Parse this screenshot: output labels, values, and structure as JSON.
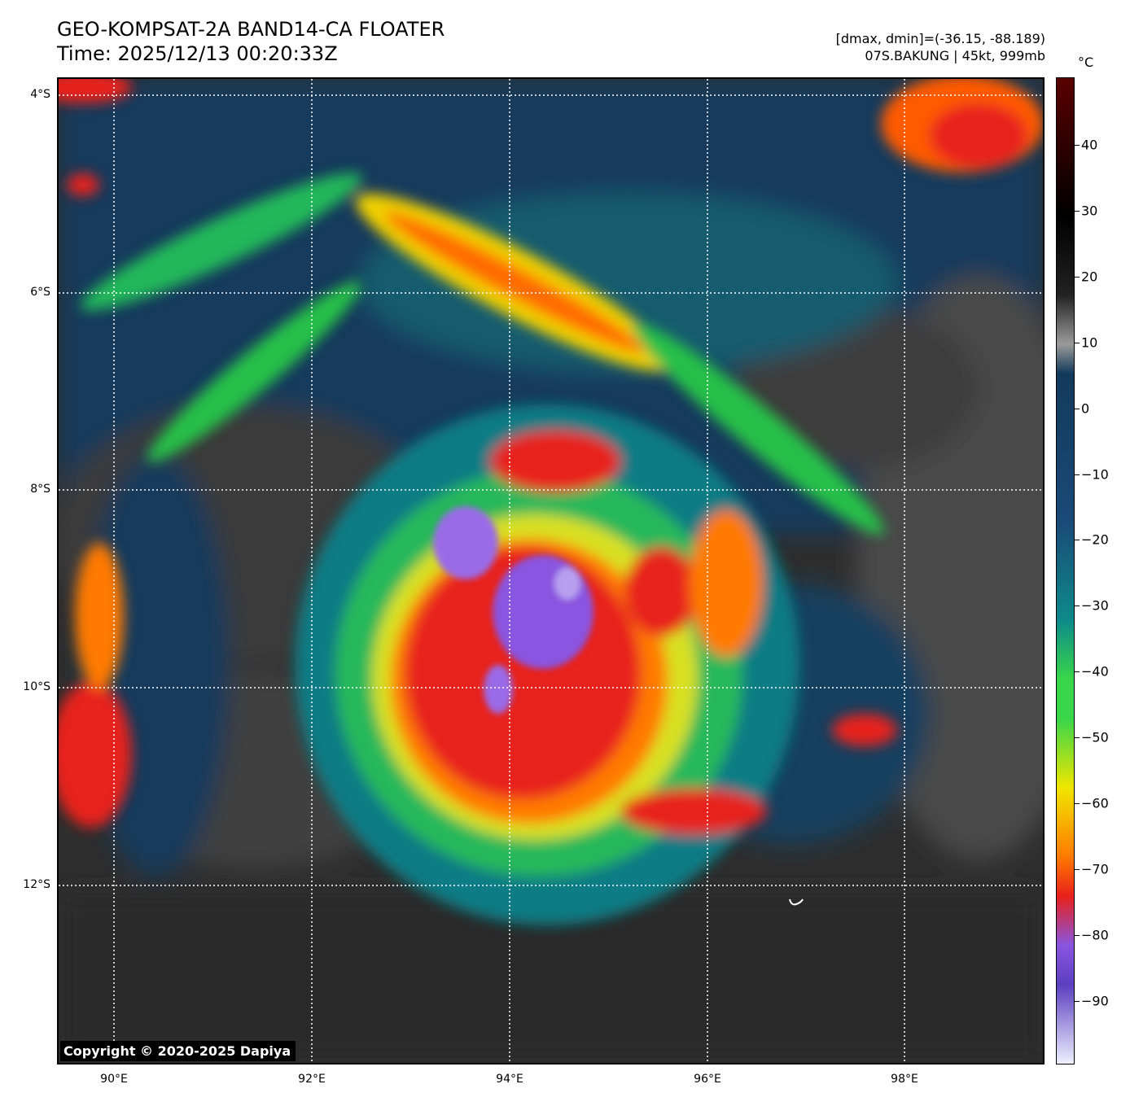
{
  "header": {
    "title": "GEO-KOMPSAT-2A BAND14-CA FLOATER",
    "time": "Time: 2025/12/13 00:20:33Z",
    "range": "[dmax, dmin]=(-36.15, -88.189)",
    "storm": "07S.BAKUNG | 45kt, 999mb"
  },
  "map": {
    "lat_labels": [
      "4°S",
      "6°S",
      "8°S",
      "10°S",
      "12°S"
    ],
    "lon_labels": [
      "90°E",
      "92°E",
      "94°E",
      "96°E",
      "98°E"
    ],
    "copyright": "Copyright © 2020-2025 Dapiya",
    "gridline_style": "white dotted"
  },
  "colorbar": {
    "unit": "°C",
    "ticks": [
      "40",
      "30",
      "20",
      "10",
      "0",
      "−10",
      "−20",
      "−30",
      "−40",
      "−50",
      "−60",
      "−70",
      "−80",
      "−90"
    ],
    "colors": {
      "warm_top": "#5a0000",
      "black": "#000000",
      "gray": "#9a9a9a",
      "ocean_blue": "#123a5c",
      "teal": "#0e8a8a",
      "green": "#39d64a",
      "yellow": "#f0e600",
      "orange": "#ff7a00",
      "red": "#e8201a",
      "purple": "#8a55e0",
      "pale": "#eef0ff"
    }
  }
}
